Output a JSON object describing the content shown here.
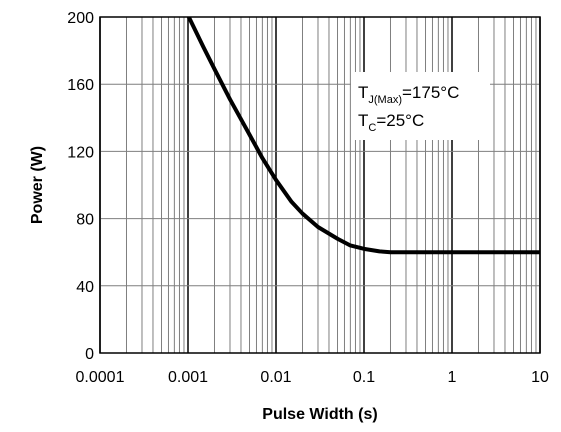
{
  "chart_data": {
    "type": "line",
    "title": "",
    "xlabel": "Pulse Width (s)",
    "ylabel": "Power (W)",
    "x_scale": "log",
    "xlim": [
      0.0001,
      10
    ],
    "ylim": [
      0,
      200
    ],
    "x_ticks": [
      0.0001,
      0.001,
      0.01,
      0.1,
      1,
      10
    ],
    "x_tick_labels": [
      "0.0001",
      "0.001",
      "0.01",
      "0.1",
      "1",
      "10"
    ],
    "y_ticks": [
      0,
      40,
      80,
      120,
      160,
      200
    ],
    "y_tick_labels": [
      "0",
      "40",
      "80",
      "120",
      "160",
      "200"
    ],
    "grid": true,
    "series": [
      {
        "color": "#000000",
        "x": [
          0.001,
          0.0015,
          0.002,
          0.003,
          0.005,
          0.007,
          0.01,
          0.015,
          0.02,
          0.03,
          0.05,
          0.07,
          0.1,
          0.15,
          0.2,
          0.3,
          0.5,
          1,
          2,
          5,
          10
        ],
        "y": [
          201,
          182,
          169,
          151,
          130,
          116,
          103,
          90,
          83,
          75,
          68,
          64,
          62,
          60.5,
          60,
          60,
          60,
          60,
          60,
          60,
          60
        ]
      }
    ],
    "annotations": [
      {
        "lines": [
          {
            "base": "T",
            "sub": "J(Max)",
            "rest": "=175°C"
          },
          {
            "base": "T",
            "sub": "C",
            "rest": "=25°C"
          }
        ]
      }
    ]
  }
}
